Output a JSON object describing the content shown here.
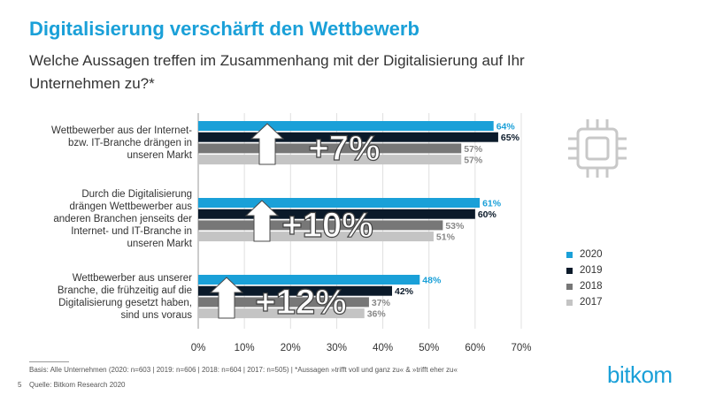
{
  "title": "Digitalisierung verschärft den Wettbewerb",
  "subtitle": "Welche Aussagen treffen im Zusammenhang mit der Digitalisierung auf Ihr Unternehmen zu?*",
  "chart_data": {
    "type": "bar",
    "orientation": "horizontal",
    "categories": [
      "Wettbewerber aus der Internet- bzw. IT-Branche drängen in unseren Markt",
      "Durch die Digitalisierung drängen Wettbewerber aus anderen Branchen jenseits der Internet- und IT-Branche in unseren Markt",
      "Wettbewerber aus unserer Branche, die frühzeitig auf die Digitalisierung gesetzt haben, sind uns voraus"
    ],
    "series": [
      {
        "name": "2020",
        "values": [
          64,
          61,
          48
        ],
        "color": "#1aa0d8"
      },
      {
        "name": "2019",
        "values": [
          65,
          60,
          42
        ],
        "color": "#0b1a2a"
      },
      {
        "name": "2018",
        "values": [
          57,
          53,
          37
        ],
        "color": "#777777"
      },
      {
        "name": "2017",
        "values": [
          57,
          51,
          36
        ],
        "color": "#c4c4c4"
      }
    ],
    "data_labels": [
      [
        "64%",
        "65%",
        "57%",
        "57%"
      ],
      [
        "61%",
        "60%",
        "53%",
        "51%"
      ],
      [
        "48%",
        "42%",
        "37%",
        "36%"
      ]
    ],
    "annotations": [
      "+7%",
      "+10%",
      "+12%"
    ],
    "xlim": [
      0,
      70
    ],
    "xticks": [
      0,
      10,
      20,
      30,
      40,
      50,
      60,
      70
    ],
    "xtick_labels": [
      "0%",
      "10%",
      "20%",
      "30%",
      "40%",
      "50%",
      "60%",
      "70%"
    ],
    "legend": [
      "2020",
      "2019",
      "2018",
      "2017"
    ],
    "legend_position": "right"
  },
  "category_lines": [
    [
      "Wettbewerber aus der Internet-",
      "bzw. IT-Branche drängen in",
      "unseren Markt"
    ],
    [
      "Durch die Digitalisierung",
      "drängen Wettbewerber aus",
      "anderen Branchen jenseits der",
      "Internet- und IT-Branche in",
      "unseren Markt"
    ],
    [
      "Wettbewerber aus unserer",
      "Branche, die frühzeitig auf die",
      "Digitalisierung gesetzt haben,",
      "sind uns voraus"
    ]
  ],
  "footer": {
    "basis": "Basis: Alle Unternehmen (2020: n=603 | 2019: n=606 | 2018: n=604 | 2017: n=505) | *Aussagen »trifft voll und ganz zu« & »trifft eher zu«",
    "source": "Quelle: Bitkom Research 2020",
    "page_number": "5"
  },
  "brand": "bitkom",
  "icon": "chip-icon"
}
